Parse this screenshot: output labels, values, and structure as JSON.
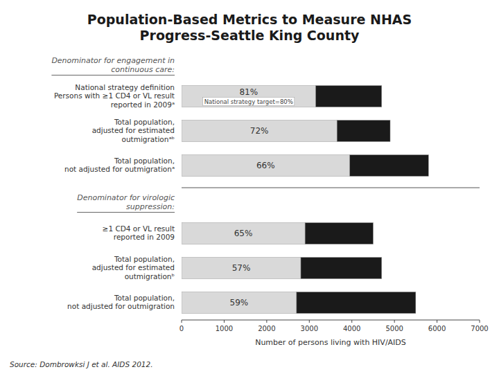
{
  "chart_data": {
    "type": "bar",
    "orientation": "horizontal",
    "stacked": true,
    "grid": false,
    "title": "Population-Based Metrics to Measure NHAS\nProgress-Seattle King County",
    "x_label": "Number of persons living with HIV/AIDS",
    "source": "Source: Dombrowksi J et al. AIDS 2012.",
    "xlim": [
      0,
      7000
    ],
    "xticks": [
      0,
      1000,
      2000,
      3000,
      4000,
      5000,
      6000,
      7000
    ],
    "categories": [
      "National strategy definition\nPersons with ≥1 CD4 or VL result\nreported in 2009ᵃ",
      "Total population,\nadjusted for estimated\noutmigrationᵃᵇ",
      "Total population,\nnot adjusted for outmigrationᵃ",
      "≥1 CD4 or VL result\nreported in 2009",
      "Total population,\nadjusted for estimated\noutmigrationᵇ",
      "Total population,\nnot adjusted for outmigration"
    ],
    "group_labels": [
      "Denominator for engagement in\ncontinuous care:",
      null,
      null,
      "Denominator for virologic\nsuppression:",
      null,
      null
    ],
    "series": [
      {
        "color": "#d9d9d9",
        "values": [
          3150,
          3650,
          3950,
          2900,
          2800,
          2700
        ]
      },
      {
        "color": "#1a1a1a",
        "values": [
          1550,
          1250,
          1850,
          1600,
          1900,
          2800
        ]
      }
    ],
    "annotations": [
      {
        "text": "81%",
        "note": "National strategy target=80%"
      },
      {
        "text": "72%"
      },
      {
        "text": "66%"
      },
      {
        "text": "65%"
      },
      {
        "text": "57%"
      },
      {
        "text": "59%"
      }
    ]
  }
}
